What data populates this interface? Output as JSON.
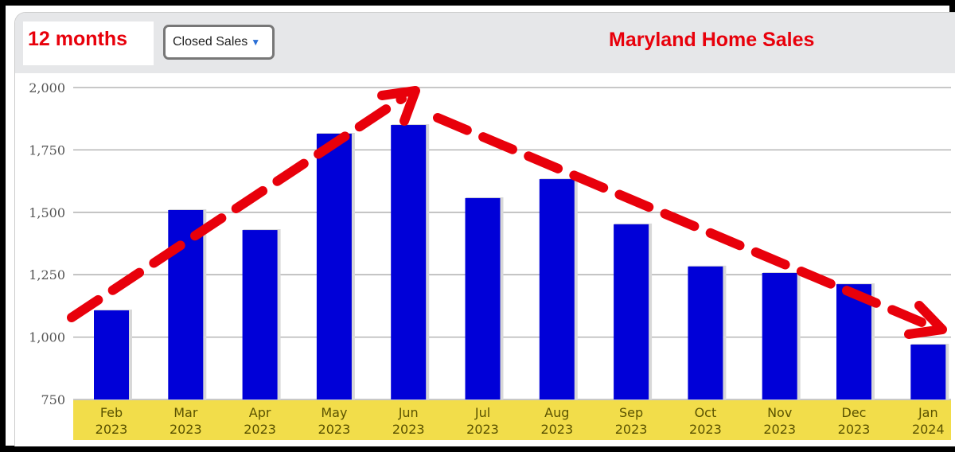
{
  "header": {
    "period_label": "12 months",
    "metric_select": "Closed Sales",
    "title": "Maryland Home Sales"
  },
  "colors": {
    "bar": "#0000d8",
    "axis_band": "#f2dd4a",
    "annotation": "#e8000b"
  },
  "chart_data": {
    "type": "bar",
    "title": "Maryland Home Sales",
    "categories": [
      "Feb 2023",
      "Mar 2023",
      "Apr 2023",
      "May 2023",
      "Jun 2023",
      "Jul 2023",
      "Aug 2023",
      "Sep 2023",
      "Oct 2023",
      "Nov 2023",
      "Dec 2023",
      "Jan 2024"
    ],
    "category_lines": [
      [
        "Feb",
        "2023"
      ],
      [
        "Mar",
        "2023"
      ],
      [
        "Apr",
        "2023"
      ],
      [
        "May",
        "2023"
      ],
      [
        "Jun",
        "2023"
      ],
      [
        "Jul",
        "2023"
      ],
      [
        "Aug",
        "2023"
      ],
      [
        "Sep",
        "2023"
      ],
      [
        "Oct",
        "2023"
      ],
      [
        "Nov",
        "2023"
      ],
      [
        "Dec",
        "2023"
      ],
      [
        "Jan",
        "2024"
      ]
    ],
    "values": [
      1107,
      1509,
      1429,
      1815,
      1850,
      1557,
      1633,
      1452,
      1283,
      1257,
      1212,
      970
    ],
    "xlabel": "",
    "ylabel": "",
    "ylim": [
      750,
      2000
    ],
    "yticks": [
      750,
      1000,
      1250,
      1500,
      1750,
      2000
    ],
    "ytick_labels": [
      "750",
      "1,000",
      "1,250",
      "1,500",
      "1,750",
      "2,000"
    ],
    "grid": true,
    "annotations": [
      "dashed red arrow rising Feb to Jun",
      "dashed red arrow falling Jun to Jan"
    ]
  }
}
